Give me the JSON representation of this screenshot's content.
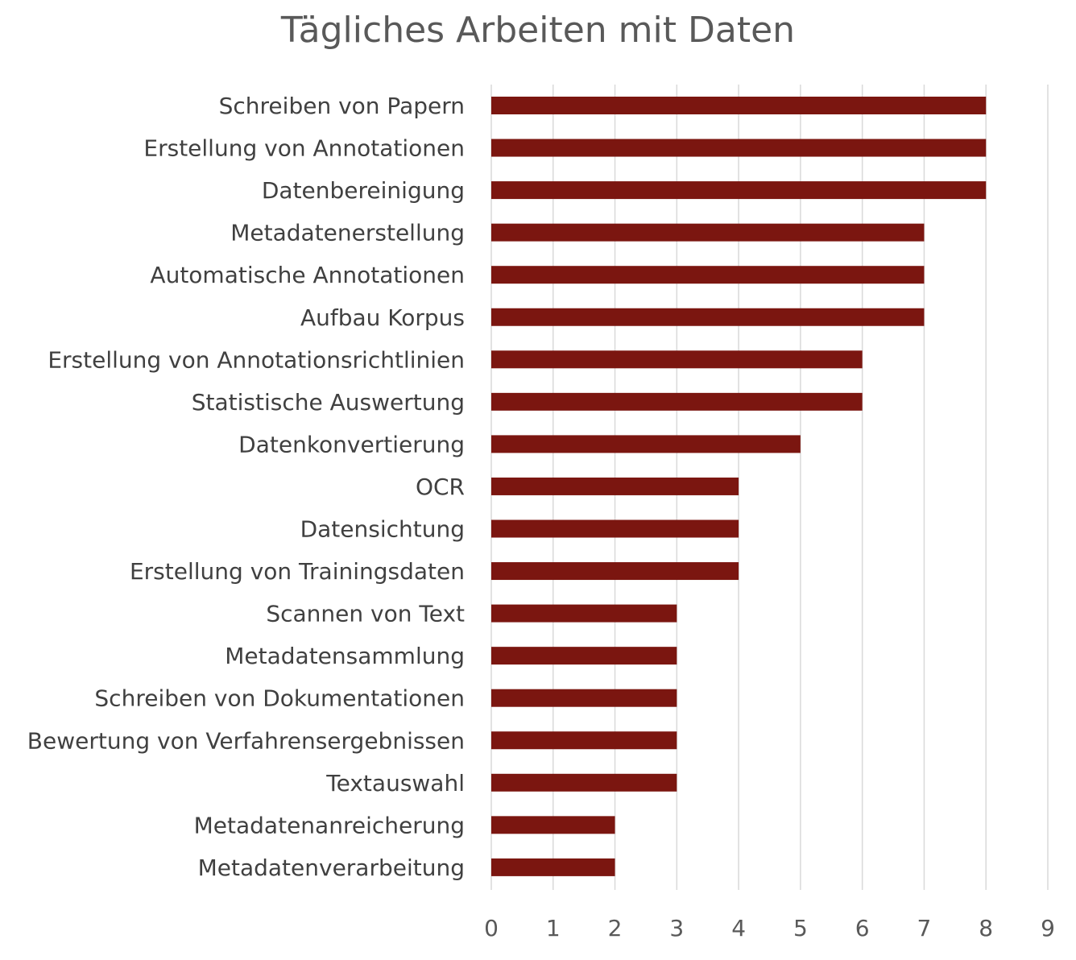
{
  "chart_data": {
    "type": "bar",
    "orientation": "horizontal",
    "title": "Tägliches Arbeiten mit Daten",
    "xlabel": "",
    "ylabel": "",
    "categories": [
      "Schreiben von Papern",
      "Erstellung von Annotationen",
      "Datenbereinigung",
      "Metadatenerstellung",
      "Automatische Annotationen",
      "Aufbau Korpus",
      "Erstellung von Annotationsrichtlinien",
      "Statistische Auswertung",
      "Datenkonvertierung",
      "OCR",
      "Datensichtung",
      "Erstellung von Trainingsdaten",
      "Scannen von Text",
      "Metadatensammlung",
      "Schreiben von Dokumentationen",
      "Bewertung von Verfahrensergebnissen",
      "Textauswahl",
      "Metadatenanreicherung",
      "Metadatenverarbeitung"
    ],
    "values": [
      8,
      8,
      8,
      7,
      7,
      7,
      6,
      6,
      5,
      4,
      4,
      4,
      3,
      3,
      3,
      3,
      3,
      2,
      2
    ],
    "xlim": [
      0,
      9
    ],
    "x_ticks": [
      "0",
      "1",
      "2",
      "3",
      "4",
      "5",
      "6",
      "7",
      "8",
      "9"
    ],
    "grid": "vertical",
    "legend": "none",
    "bar_color": "#7b1610"
  }
}
